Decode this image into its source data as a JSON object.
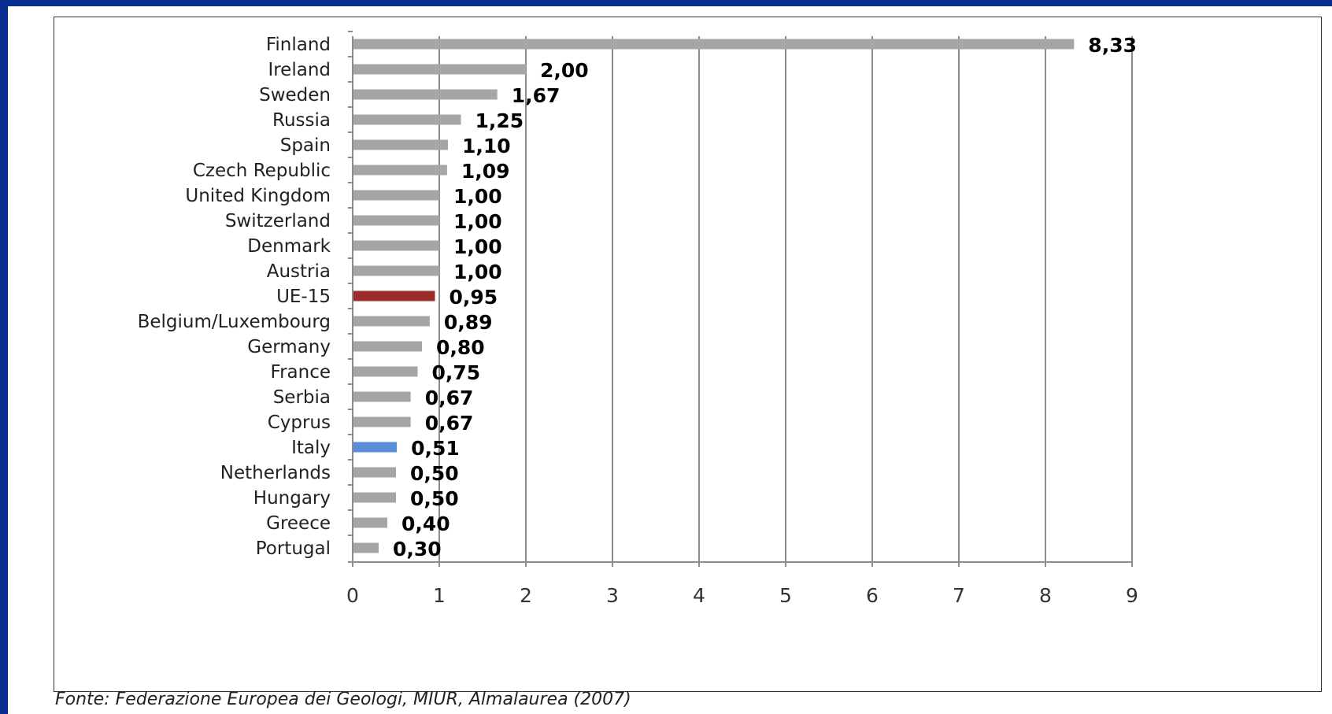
{
  "chart_data": {
    "type": "bar",
    "orientation": "horizontal",
    "categories": [
      "Finland",
      "Ireland",
      "Sweden",
      "Russia",
      "Spain",
      "Czech Republic",
      "United Kingdom",
      "Switzerland",
      "Denmark",
      "Austria",
      "UE-15",
      "Belgium/Luxembourg",
      "Germany",
      "France",
      "Serbia",
      "Cyprus",
      "Italy",
      "Netherlands",
      "Hungary",
      "Greece",
      "Portugal"
    ],
    "values": [
      8.33,
      2.0,
      1.67,
      1.25,
      1.1,
      1.09,
      1.0,
      1.0,
      1.0,
      1.0,
      0.95,
      0.89,
      0.8,
      0.75,
      0.67,
      0.67,
      0.51,
      0.5,
      0.5,
      0.4,
      0.3
    ],
    "value_labels": [
      "8,33",
      "2,00",
      "1,67",
      "1,25",
      "1,10",
      "1,09",
      "1,00",
      "1,00",
      "1,00",
      "1,00",
      "0,95",
      "0,89",
      "0,80",
      "0,75",
      "0,67",
      "0,67",
      "0,51",
      "0,50",
      "0,50",
      "0,40",
      "0,30"
    ],
    "highlights": {
      "UE-15": "#9b2d2a",
      "Italy": "#5b8fd9"
    },
    "bar_color": "#a6a6a6",
    "xlim": [
      0,
      9
    ],
    "xticks": [
      "0",
      "1",
      "2",
      "3",
      "4",
      "5",
      "6",
      "7",
      "8",
      "9"
    ],
    "grid": "vertical",
    "title": "",
    "xlabel": "",
    "ylabel": ""
  },
  "source": "Fonte: Federazione Europea dei Geologi, MIUR, Almalaurea (2007)"
}
